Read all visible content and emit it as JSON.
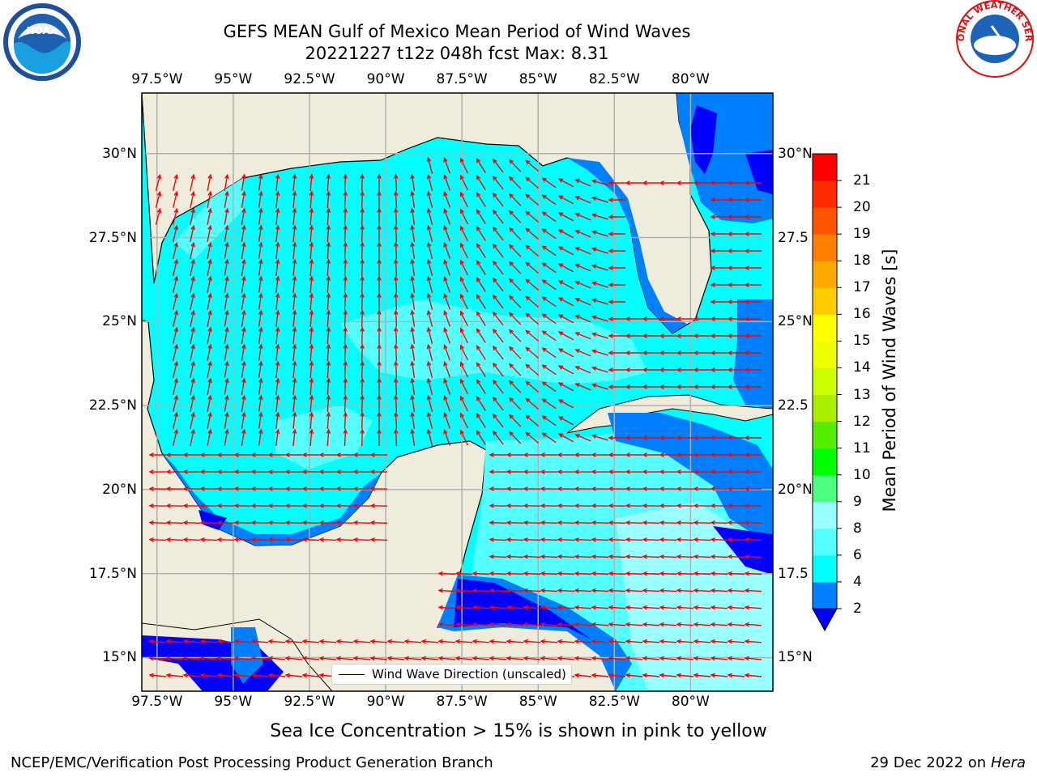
{
  "title": "GEFS MEAN Gulf of Mexico Mean Period of Wind Waves",
  "subtitle": "20221227 t12z 048h fcst   Max: 8.31",
  "map": {
    "region": "Gulf of Mexico",
    "extent": {
      "lon": [
        -98,
        -77.3
      ],
      "lat": [
        14,
        31.8
      ]
    },
    "lon_ticks": [
      "97.5°W",
      "95°W",
      "92.5°W",
      "90°W",
      "87.5°W",
      "85°W",
      "82.5°W",
      "80°W"
    ],
    "lon_tick_values": [
      -97.5,
      -95,
      -92.5,
      -90,
      -87.5,
      -85,
      -82.5,
      -80
    ],
    "lat_ticks": [
      "30°N",
      "27.5°N",
      "25°N",
      "22.5°N",
      "20°N",
      "17.5°N",
      "15°N"
    ],
    "lat_tick_values": [
      30,
      27.5,
      25,
      22.5,
      20,
      17.5,
      15
    ],
    "lat_ticks_right": [
      "30°N",
      "27.5",
      "25°N",
      "22.5",
      "20°N",
      "17.5",
      "15°N"
    ],
    "gridlines": true,
    "colors": {
      "land": "#efecdc",
      "water_4_6": "#00ffff",
      "water_6_8": "#55ffff",
      "water_8_9": "#99ffff",
      "water_2_4": "#0080ff",
      "water_lt_2": "#0000ff",
      "arrow": "#ff0000"
    }
  },
  "legend": {
    "label": "Wind Wave Direction (unscaled)",
    "position": "lower-center"
  },
  "colorbar": {
    "label": "Mean Period of Wind Waves [s]",
    "ticks": [
      "2",
      "4",
      "6",
      "8",
      "9",
      "10",
      "11",
      "12",
      "13",
      "14",
      "15",
      "16",
      "17",
      "18",
      "19",
      "20",
      "21"
    ],
    "bands": [
      {
        "from": 2,
        "to": 4,
        "color": "#0080ff"
      },
      {
        "from": 4,
        "to": 6,
        "color": "#00ffff"
      },
      {
        "from": 6,
        "to": 8,
        "color": "#55ffff"
      },
      {
        "from": 8,
        "to": 9,
        "color": "#99ffff"
      },
      {
        "from": 9,
        "to": 10,
        "color": "#4cff80"
      },
      {
        "from": 10,
        "to": 11,
        "color": "#00ff00"
      },
      {
        "from": 11,
        "to": 12,
        "color": "#55ee00"
      },
      {
        "from": 12,
        "to": 13,
        "color": "#aaee00"
      },
      {
        "from": 13,
        "to": 14,
        "color": "#ccff00"
      },
      {
        "from": 14,
        "to": 15,
        "color": "#eeff00"
      },
      {
        "from": 15,
        "to": 16,
        "color": "#ffff00"
      },
      {
        "from": 16,
        "to": 17,
        "color": "#ffcc00"
      },
      {
        "from": 17,
        "to": 18,
        "color": "#ffaa00"
      },
      {
        "from": 18,
        "to": 19,
        "color": "#ff8000"
      },
      {
        "from": 19,
        "to": 20,
        "color": "#ff5500"
      },
      {
        "from": 20,
        "to": 21,
        "color": "#ff2a00"
      },
      {
        "from": 21,
        "to": 22,
        "color": "#ff0000"
      }
    ],
    "extend_low_color": "#0000ff"
  },
  "note": "Sea Ice Concentration > 15% is shown in pink to yellow",
  "footer": {
    "credit": "NCEP/EMC/Verification Post Processing Product Generation Branch",
    "date": "29 Dec 2022 on",
    "host": "Hera"
  },
  "logos": {
    "left": "NOAA",
    "right": "NATIONAL WEATHER SERVICE"
  }
}
